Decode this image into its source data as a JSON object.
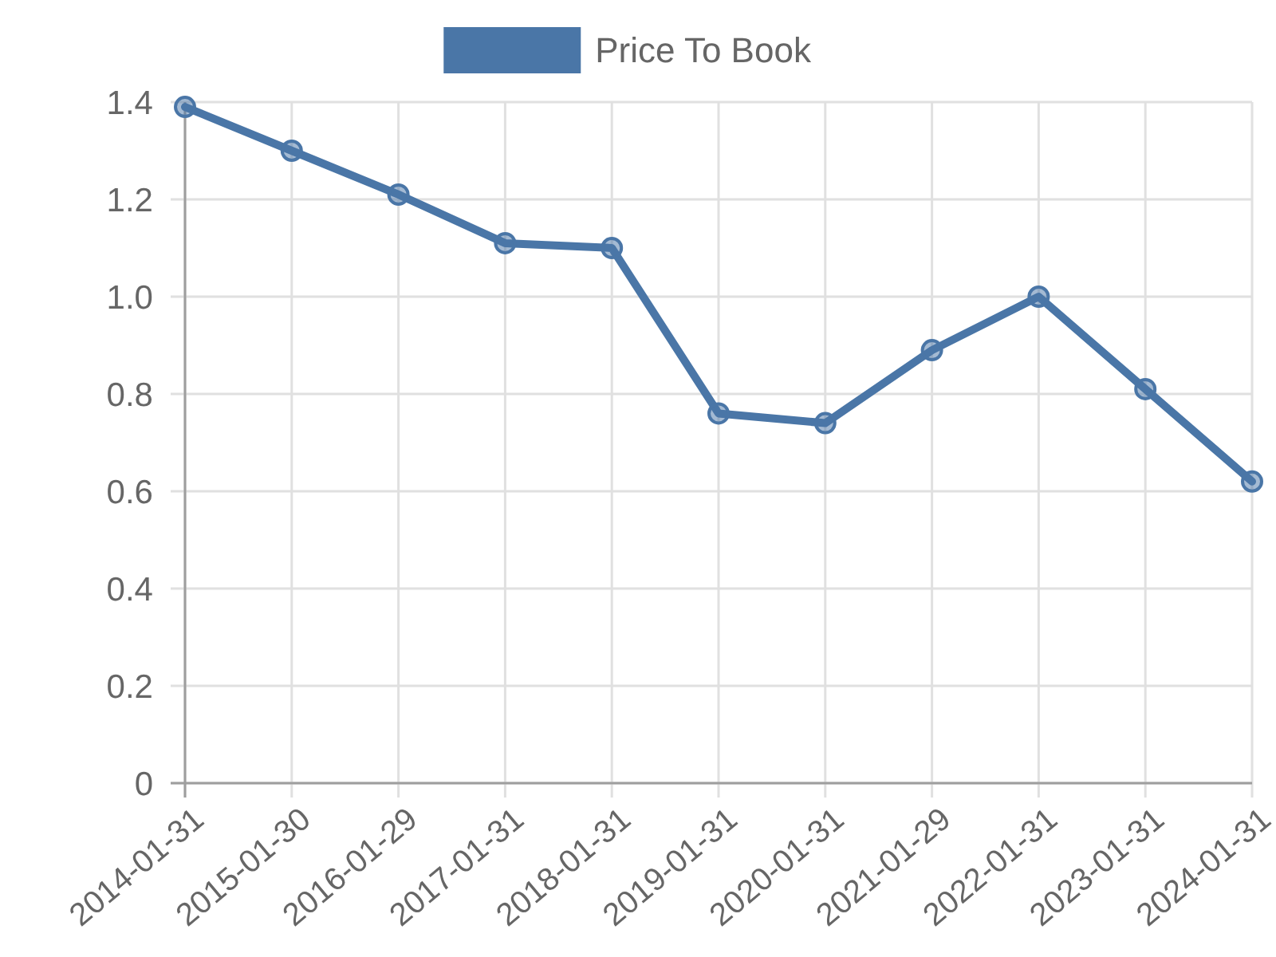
{
  "chart_data": {
    "type": "line",
    "categories": [
      "2014-01-31",
      "2015-01-30",
      "2016-01-29",
      "2017-01-31",
      "2018-01-31",
      "2019-01-31",
      "2020-01-31",
      "2021-01-29",
      "2022-01-31",
      "2023-01-31",
      "2024-01-31"
    ],
    "series": [
      {
        "name": "Price To Book",
        "color": "#4a76a7",
        "values": [
          1.39,
          1.3,
          1.21,
          1.11,
          1.1,
          0.76,
          0.74,
          0.89,
          1.0,
          0.81,
          0.62
        ]
      }
    ],
    "ylim": [
      0,
      1.4
    ],
    "yticks": [
      0,
      0.2,
      0.4,
      0.6,
      0.8,
      {
        "value": 1,
        "label": "1.0"
      },
      1.2,
      1.4
    ],
    "grid": true,
    "legend": "top",
    "marker": "circle",
    "line_style": "solid"
  }
}
